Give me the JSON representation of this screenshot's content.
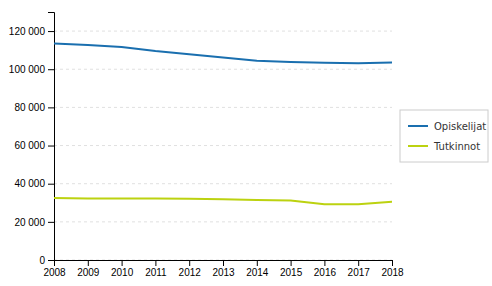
{
  "chart_data": {
    "type": "line",
    "x": [
      2008,
      2009,
      2010,
      2011,
      2012,
      2013,
      2014,
      2015,
      2016,
      2017,
      2018
    ],
    "series": [
      {
        "name": "Opiskelijat",
        "color": "#1a6faf",
        "values": [
          113500,
          112700,
          111700,
          109500,
          107800,
          106200,
          104500,
          103800,
          103400,
          103200,
          103500
        ]
      },
      {
        "name": "Tutkinnot",
        "color": "#bcd210",
        "values": [
          32500,
          32200,
          32200,
          32300,
          32100,
          31800,
          31500,
          31200,
          29200,
          29200,
          30500
        ]
      }
    ],
    "xlim": [
      2008,
      2018
    ],
    "xticks": [
      2008,
      2009,
      2010,
      2011,
      2012,
      2013,
      2014,
      2015,
      2016,
      2017,
      2018
    ],
    "ylim": [
      0,
      130000
    ],
    "yticks": [
      0,
      {
        "value": 20000,
        "label": "20 000"
      },
      {
        "value": 40000,
        "label": "40 000"
      },
      {
        "value": 60000,
        "label": "60 000"
      },
      {
        "value": 80000,
        "label": "80 000"
      },
      {
        "value": 100000,
        "label": "100 000"
      },
      {
        "value": 120000,
        "label": "120 000"
      }
    ],
    "grid": true,
    "legend": "right"
  }
}
